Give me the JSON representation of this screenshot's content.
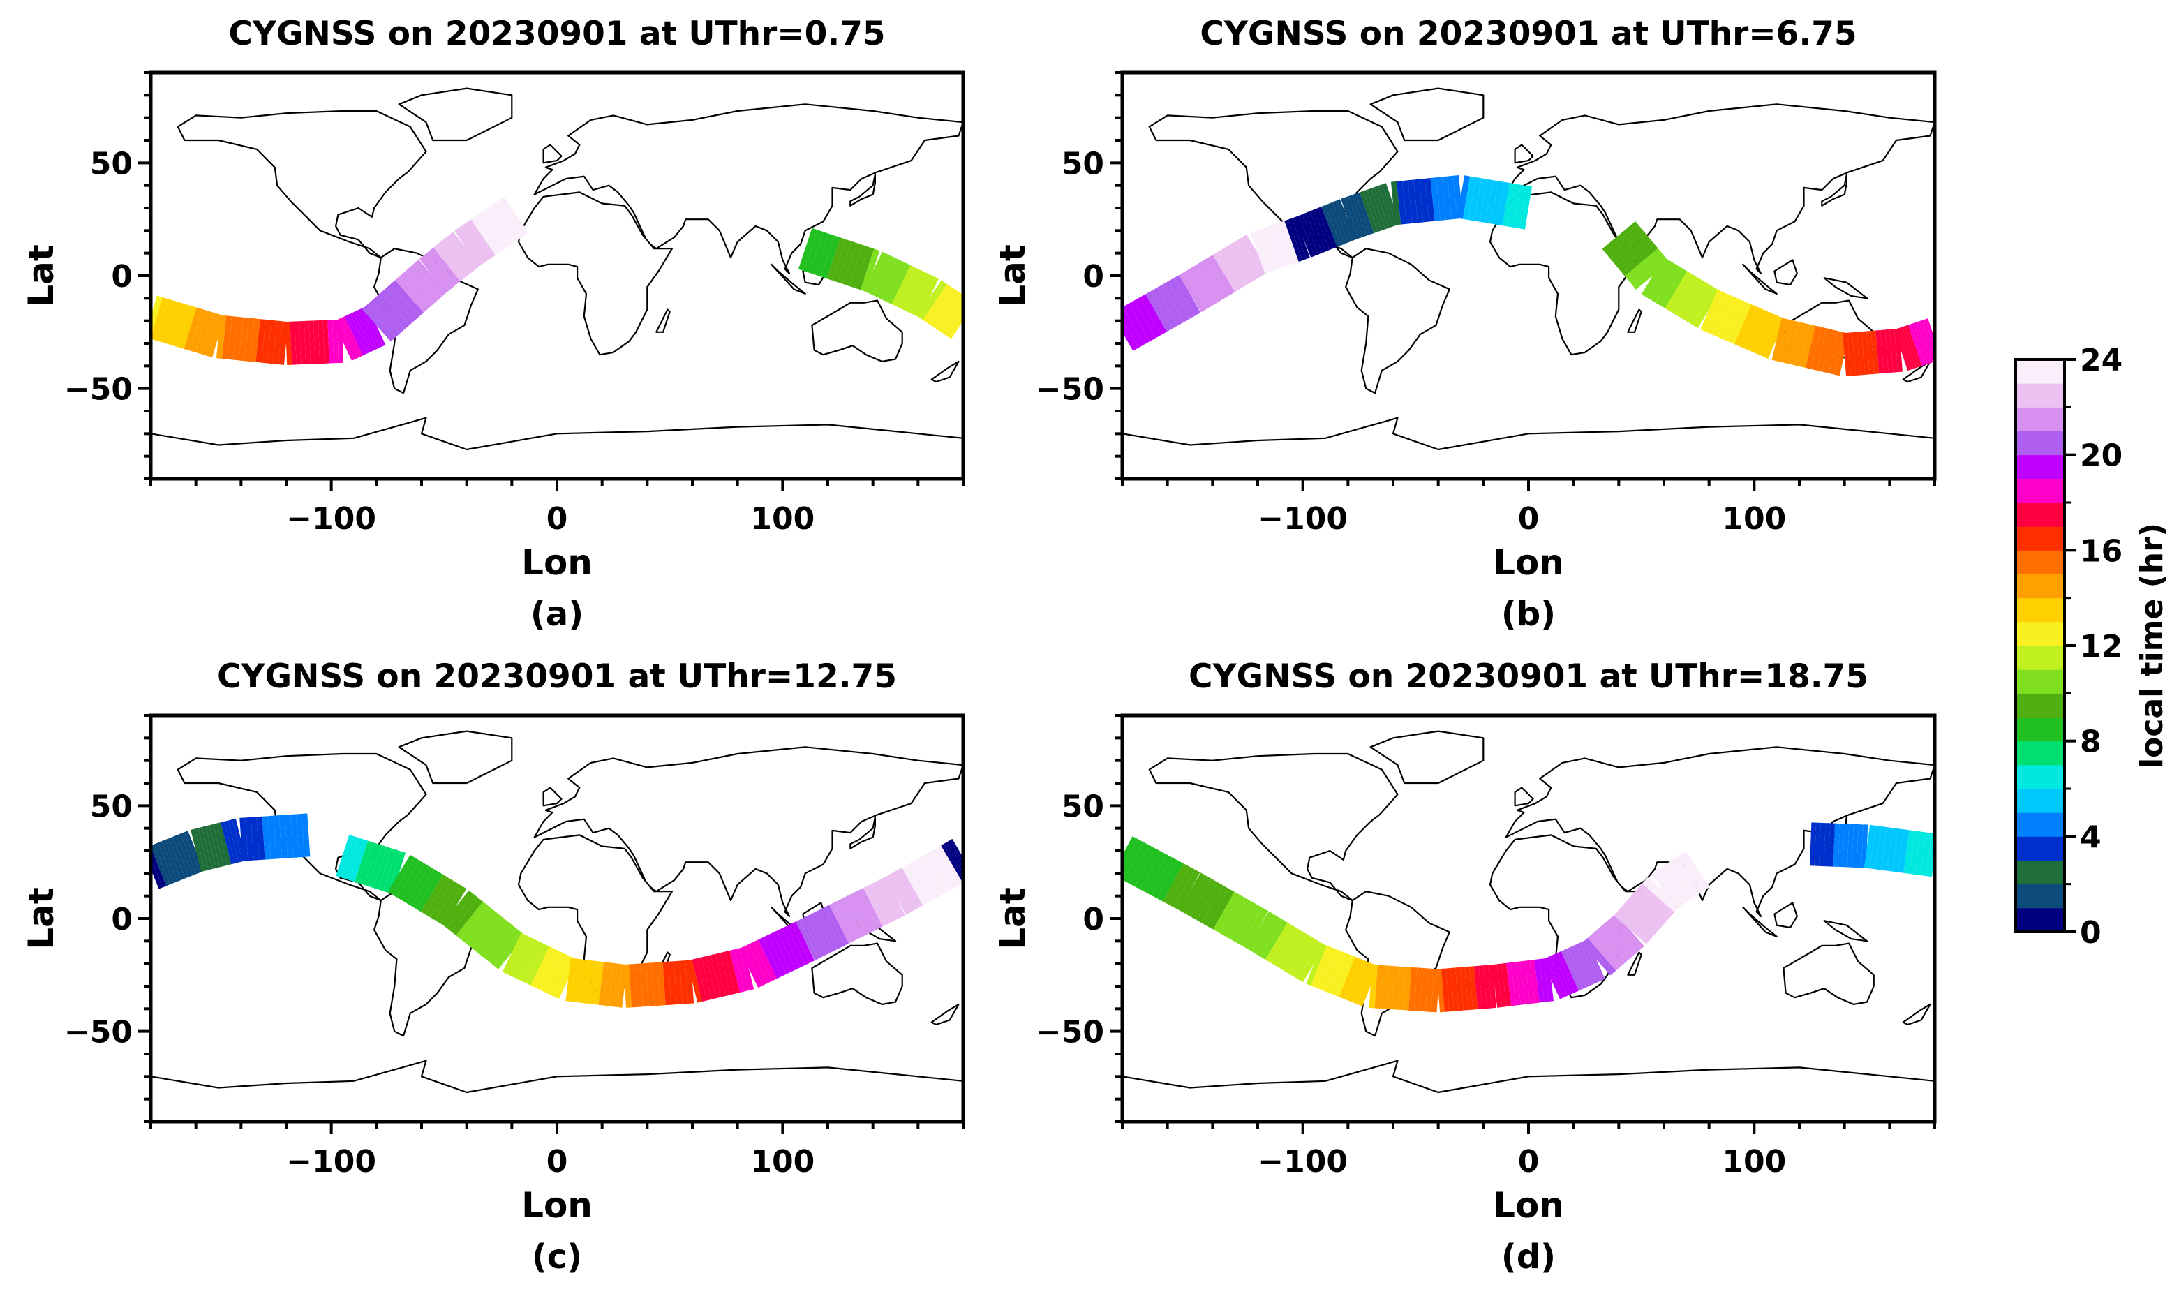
{
  "chart_data": [
    {
      "type": "scatter",
      "title": "CYGNSS on 20230901 at UThr=0.75",
      "xlabel": "Lon",
      "ylabel": "Lat",
      "caption": "(a)",
      "xlim": [
        -180,
        180
      ],
      "ylim": [
        -90,
        90
      ],
      "xticks": [
        -100,
        0,
        100
      ],
      "yticks": [
        -50,
        0,
        50
      ],
      "track": [
        {
          "lon": -180,
          "lat": -18,
          "lt": 12.9
        },
        {
          "lon": -150,
          "lat": -27,
          "lt": 14.8
        },
        {
          "lon": -120,
          "lat": -30,
          "lt": 16.8
        },
        {
          "lon": -95,
          "lat": -29,
          "lt": 18.4
        },
        {
          "lon": -80,
          "lat": -22,
          "lt": 20.0
        },
        {
          "lon": -55,
          "lat": 0,
          "lt": 21.6
        },
        {
          "lon": -40,
          "lat": 12,
          "lt": 22.6
        },
        {
          "lon": -18,
          "lat": 27,
          "lt": 23.8
        }
      ],
      "track2": [
        {
          "lon": 110,
          "lat": 12,
          "lt": 8.2
        },
        {
          "lon": 140,
          "lat": 2,
          "lt": 10.2
        },
        {
          "lon": 165,
          "lat": -10,
          "lt": 11.8
        },
        {
          "lon": 180,
          "lat": -20,
          "lt": 12.8
        }
      ]
    },
    {
      "type": "scatter",
      "title": "CYGNSS on 20230901 at UThr=6.75",
      "xlabel": "Lon",
      "ylabel": "Lat",
      "caption": "(b)",
      "xlim": [
        -180,
        180
      ],
      "ylim": [
        -90,
        90
      ],
      "xticks": [
        -100,
        0,
        100
      ],
      "yticks": [
        -50,
        0,
        50
      ],
      "track": [
        {
          "lon": -180,
          "lat": -25,
          "lt": 19.0
        },
        {
          "lon": -150,
          "lat": -8,
          "lt": 21.0
        },
        {
          "lon": -120,
          "lat": 10,
          "lt": 23.0
        },
        {
          "lon": -100,
          "lat": 17,
          "lt": 0.3
        },
        {
          "lon": -80,
          "lat": 25,
          "lt": 1.5
        },
        {
          "lon": -60,
          "lat": 32,
          "lt": 2.8
        },
        {
          "lon": -30,
          "lat": 35,
          "lt": 4.8
        },
        {
          "lon": 0,
          "lat": 30,
          "lt": 6.7
        }
      ],
      "track2": [
        {
          "lon": 40,
          "lat": 18,
          "lt": 9.3
        },
        {
          "lon": 55,
          "lat": 0,
          "lt": 10.3
        },
        {
          "lon": 80,
          "lat": -15,
          "lt": 12.0
        },
        {
          "lon": 110,
          "lat": -28,
          "lt": 14.0
        },
        {
          "lon": 140,
          "lat": -35,
          "lt": 16.0
        },
        {
          "lon": 165,
          "lat": -33,
          "lt": 17.6
        },
        {
          "lon": 180,
          "lat": -28,
          "lt": 18.6
        }
      ]
    },
    {
      "type": "scatter",
      "title": "CYGNSS on 20230901 at UThr=12.75",
      "xlabel": "Lon",
      "ylabel": "Lat",
      "caption": "(c)",
      "xlim": [
        -180,
        180
      ],
      "ylim": [
        -90,
        90
      ],
      "xticks": [
        -100,
        0,
        100
      ],
      "yticks": [
        -50,
        0,
        50
      ],
      "track": [
        {
          "lon": -180,
          "lat": 22,
          "lt": 0.8
        },
        {
          "lon": -160,
          "lat": 30,
          "lt": 2.0
        },
        {
          "lon": -140,
          "lat": 35,
          "lt": 3.5
        },
        {
          "lon": -110,
          "lat": 37,
          "lt": 5.0
        }
      ],
      "track2": [
        {
          "lon": -95,
          "lat": 28,
          "lt": 6.4
        },
        {
          "lon": -70,
          "lat": 20,
          "lt": 8.0
        },
        {
          "lon": -45,
          "lat": 5,
          "lt": 9.6
        },
        {
          "lon": -20,
          "lat": -15,
          "lt": 11.0
        },
        {
          "lon": 5,
          "lat": -27,
          "lt": 13.0
        },
        {
          "lon": 30,
          "lat": -30,
          "lt": 14.8
        },
        {
          "lon": 60,
          "lat": -28,
          "lt": 16.8
        },
        {
          "lon": 85,
          "lat": -22,
          "lt": 18.4
        },
        {
          "lon": 110,
          "lat": -10,
          "lt": 20.0
        },
        {
          "lon": 130,
          "lat": 0,
          "lt": 21.4
        },
        {
          "lon": 150,
          "lat": 10,
          "lt": 22.6
        },
        {
          "lon": 168,
          "lat": 20,
          "lt": 23.6
        },
        {
          "lon": 180,
          "lat": 27,
          "lt": 0.3
        }
      ]
    },
    {
      "type": "scatter",
      "title": "CYGNSS on 20230901 at UThr=18.75",
      "xlabel": "Lon",
      "ylabel": "Lat",
      "caption": "(d)",
      "xlim": [
        -180,
        180
      ],
      "ylim": [
        -90,
        90
      ],
      "xticks": [
        -100,
        0,
        100
      ],
      "yticks": [
        -50,
        0,
        50
      ],
      "track": [
        {
          "lon": -180,
          "lat": 28,
          "lt": 8.0
        },
        {
          "lon": -150,
          "lat": 12,
          "lt": 9.3
        },
        {
          "lon": -120,
          "lat": -5,
          "lt": 10.6
        },
        {
          "lon": -95,
          "lat": -20,
          "lt": 11.8
        },
        {
          "lon": -70,
          "lat": -30,
          "lt": 13.8
        },
        {
          "lon": -40,
          "lat": -32,
          "lt": 15.8
        },
        {
          "lon": -15,
          "lat": -30,
          "lt": 17.6
        },
        {
          "lon": 10,
          "lat": -27,
          "lt": 19.4
        },
        {
          "lon": 30,
          "lat": -18,
          "lt": 20.8
        },
        {
          "lon": 45,
          "lat": -5,
          "lt": 22.0
        },
        {
          "lon": 60,
          "lat": 12,
          "lt": 23.2
        },
        {
          "lon": 75,
          "lat": 22,
          "lt": 23.9
        }
      ],
      "track2": [
        {
          "lon": 125,
          "lat": 33,
          "lt": 3.2
        },
        {
          "lon": 150,
          "lat": 32,
          "lt": 5.0
        },
        {
          "lon": 180,
          "lat": 28,
          "lt": 6.7
        }
      ]
    }
  ],
  "colorbar": {
    "label": "local time (hr)",
    "range": [
      0,
      24
    ],
    "ticks": [
      "0",
      "4",
      "8",
      "12",
      "16",
      "20",
      "24"
    ],
    "colors": [
      "#000080",
      "#0b4a7a",
      "#1f6e3a",
      "#0030cc",
      "#0080ff",
      "#00c8ff",
      "#00e8e0",
      "#00e070",
      "#20c020",
      "#50b010",
      "#80e020",
      "#c0f020",
      "#f8f020",
      "#ffd000",
      "#ffa000",
      "#ff7000",
      "#ff3000",
      "#ff0040",
      "#ff00c8",
      "#c000ff",
      "#b060f0",
      "#d890f0",
      "#ecc0f0",
      "#faeefa"
    ]
  }
}
